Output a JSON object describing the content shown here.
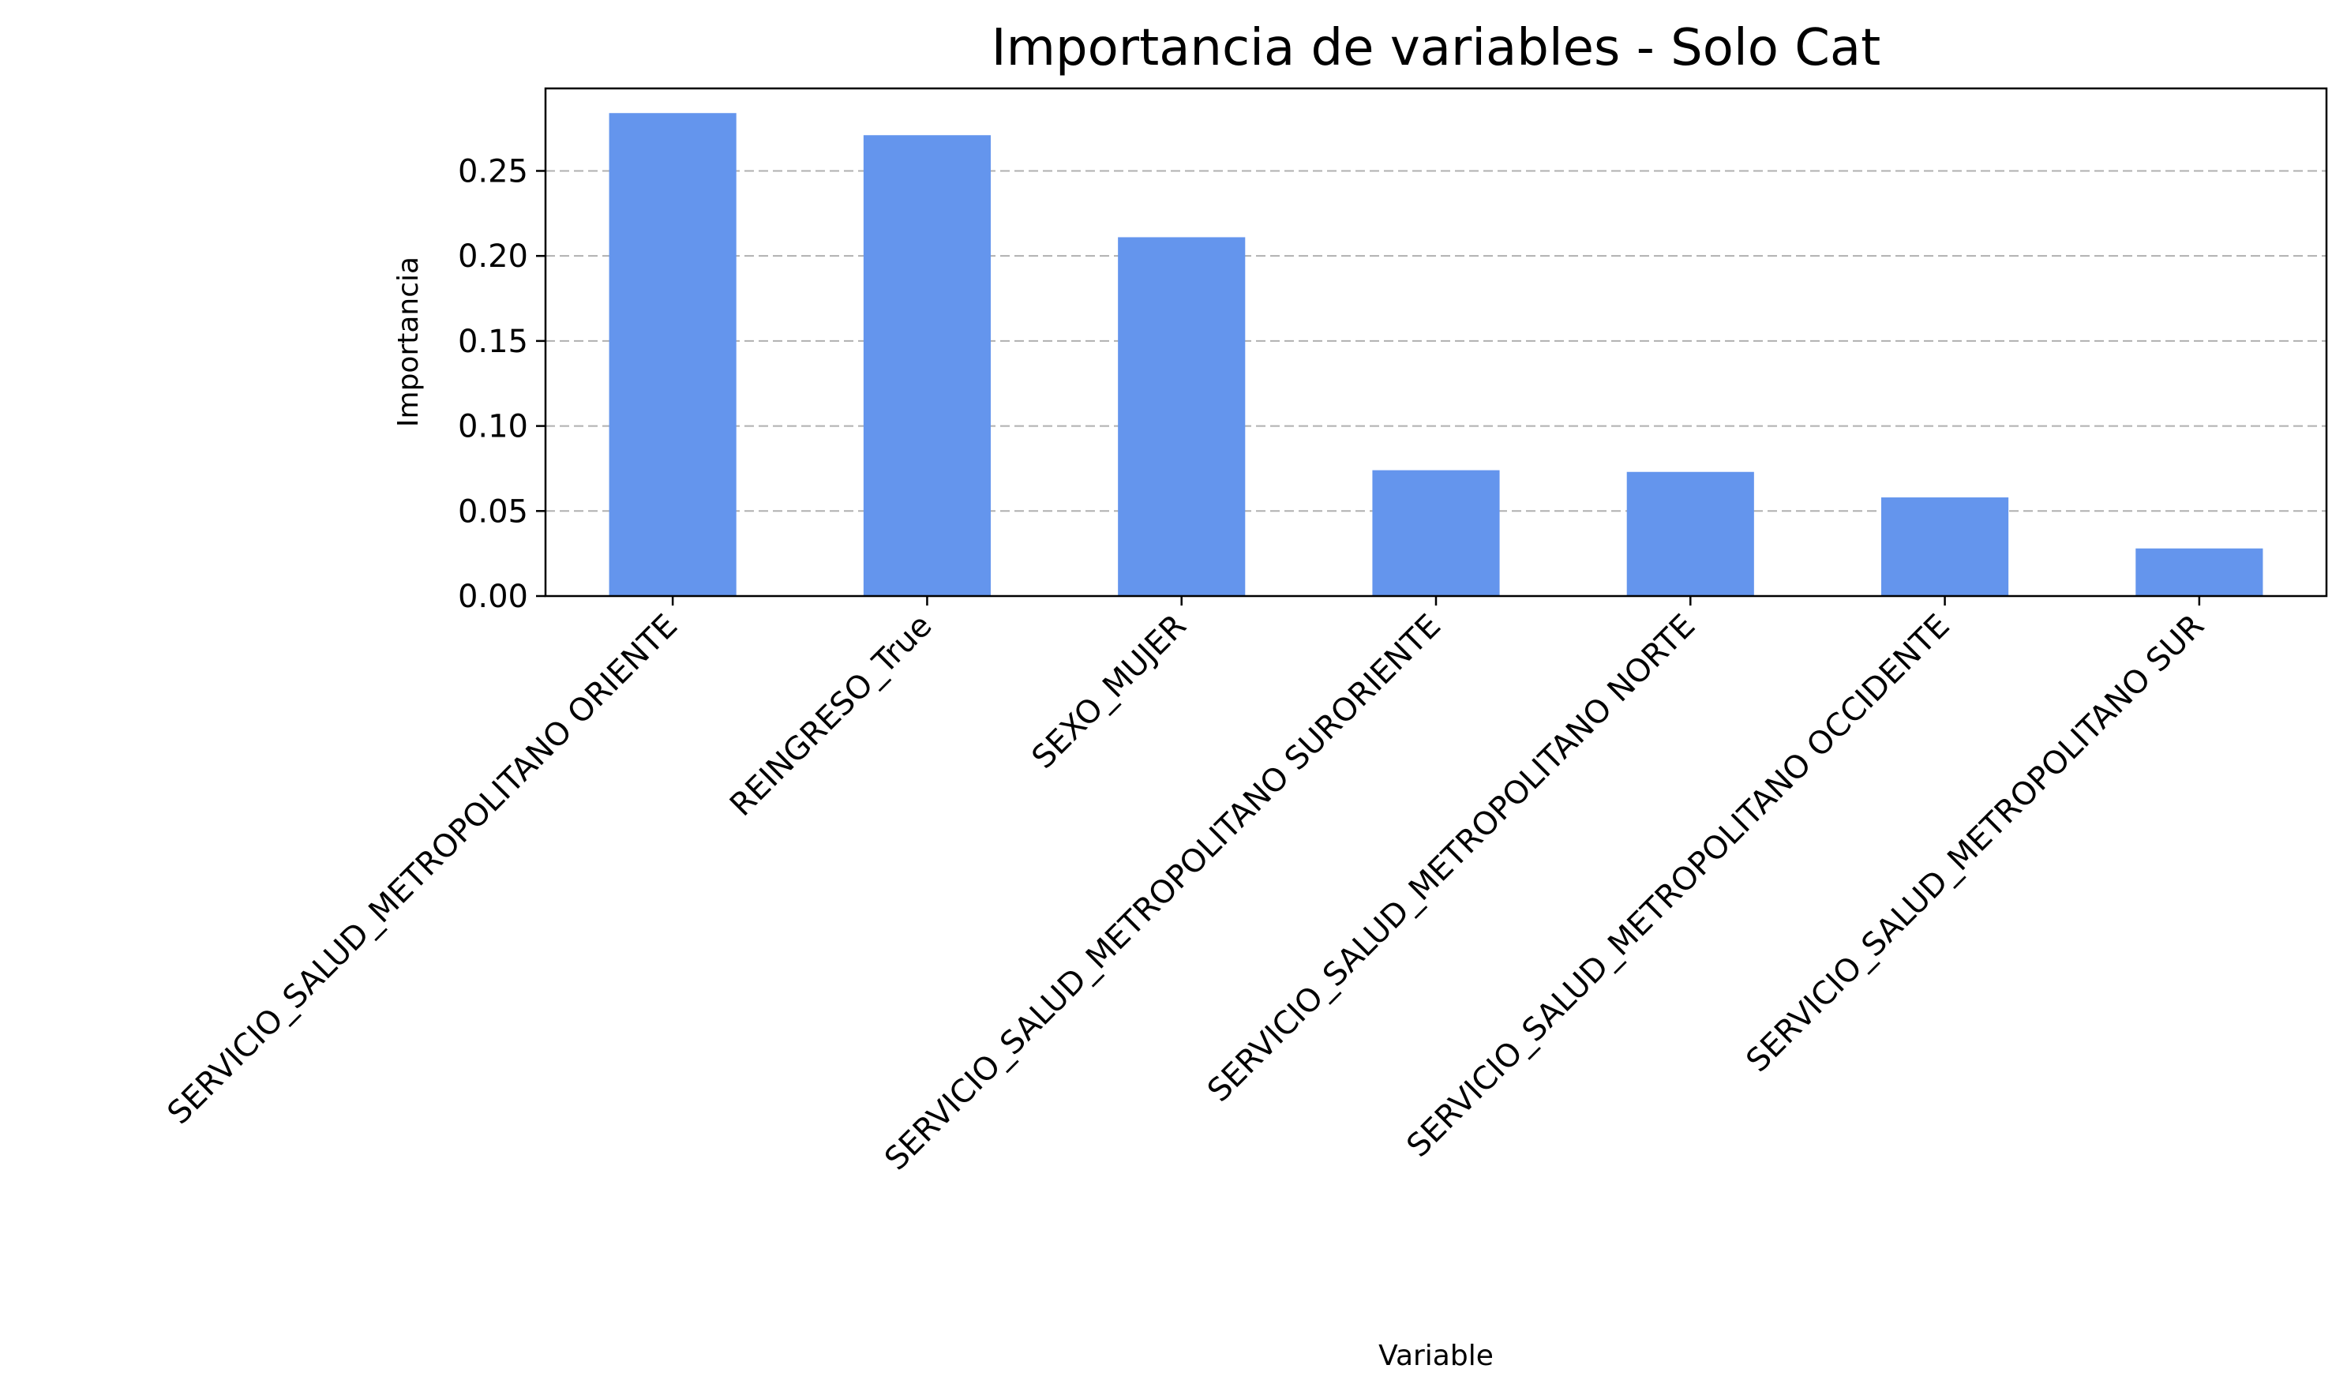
{
  "chart_data": {
    "type": "bar",
    "title": "Importancia de variables - Solo Cat",
    "xlabel": "Variable",
    "ylabel": "Importancia",
    "categories": [
      "SERVICIO_SALUD_METROPOLITANO ORIENTE",
      "REINGRESO_True",
      "SEXO_MUJER",
      "SERVICIO_SALUD_METROPOLITANO SURORIENTE",
      "SERVICIO_SALUD_METROPOLITANO NORTE",
      "SERVICIO_SALUD_METROPOLITANO OCCIDENTE",
      "SERVICIO_SALUD_METROPOLITANO SUR"
    ],
    "values": [
      0.284,
      0.271,
      0.211,
      0.074,
      0.073,
      0.058,
      0.028
    ],
    "ylim": [
      0,
      0.2985
    ],
    "yticks": [
      "0.00",
      "0.05",
      "0.10",
      "0.15",
      "0.20",
      "0.25"
    ],
    "grid": "y-dashed",
    "legend": "none",
    "bar_color": "#6495ED"
  }
}
